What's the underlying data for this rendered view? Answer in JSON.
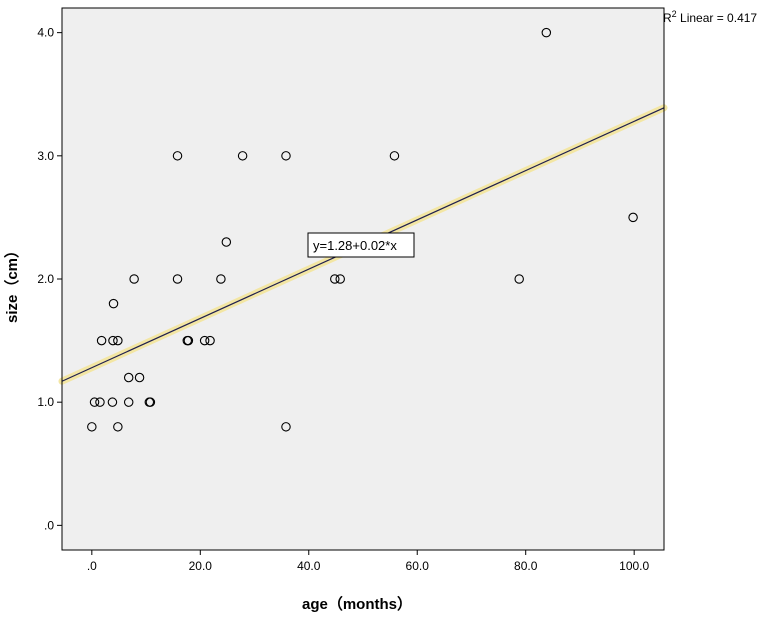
{
  "chart_data": {
    "type": "scatter",
    "xlabel": "age（months）",
    "ylabel": "size（cm）",
    "xlim": [
      -5.5,
      105.5
    ],
    "ylim": [
      -0.2,
      4.2
    ],
    "x_ticks": [
      0,
      20,
      40,
      60,
      80,
      100
    ],
    "x_tick_labels": [
      ".0",
      "20.0",
      "40.0",
      "60.0",
      "80.0",
      "100.0"
    ],
    "y_ticks": [
      0,
      1,
      2,
      3,
      4
    ],
    "y_tick_labels": [
      ".0",
      "1.0",
      "2.0",
      "3.0",
      "4.0"
    ],
    "grid": false,
    "background": "#efefef",
    "points": [
      {
        "x": 0,
        "y": 0.8
      },
      {
        "x": 0.5,
        "y": 1.0
      },
      {
        "x": 1.5,
        "y": 1.0
      },
      {
        "x": 1.8,
        "y": 1.5
      },
      {
        "x": 3.8,
        "y": 1.0
      },
      {
        "x": 3.9,
        "y": 1.5
      },
      {
        "x": 4.0,
        "y": 1.8
      },
      {
        "x": 4.8,
        "y": 1.5
      },
      {
        "x": 4.8,
        "y": 0.8
      },
      {
        "x": 6.8,
        "y": 1.0
      },
      {
        "x": 6.8,
        "y": 1.2
      },
      {
        "x": 7.8,
        "y": 2.0
      },
      {
        "x": 8.8,
        "y": 1.2
      },
      {
        "x": 10.6,
        "y": 1.0
      },
      {
        "x": 10.8,
        "y": 1.0
      },
      {
        "x": 15.8,
        "y": 3.0
      },
      {
        "x": 15.8,
        "y": 2.0
      },
      {
        "x": 17.6,
        "y": 1.5
      },
      {
        "x": 17.8,
        "y": 1.5
      },
      {
        "x": 20.8,
        "y": 1.5
      },
      {
        "x": 21.8,
        "y": 1.5
      },
      {
        "x": 23.8,
        "y": 2.0
      },
      {
        "x": 24.8,
        "y": 2.3
      },
      {
        "x": 27.8,
        "y": 3.0
      },
      {
        "x": 35.8,
        "y": 3.0
      },
      {
        "x": 35.8,
        "y": 0.8
      },
      {
        "x": 44.8,
        "y": 2.0
      },
      {
        "x": 45.8,
        "y": 2.0
      },
      {
        "x": 55.8,
        "y": 3.0
      },
      {
        "x": 78.8,
        "y": 2.0
      },
      {
        "x": 83.8,
        "y": 4.0
      },
      {
        "x": 99.8,
        "y": 2.5
      }
    ],
    "fit_line": {
      "intercept": 1.28,
      "slope": 0.02,
      "x_start": -5.5,
      "x_end": 105.5
    },
    "equation_label": "y=1.28+0.02*x",
    "r2_label": {
      "prefix": "R",
      "sup": "2",
      "text": " Linear = 0.417"
    },
    "colors": {
      "point_stroke": "#000000",
      "fit_line": "#1f1f4f",
      "fit_halo": "#f3e6a3",
      "frame": "#000000"
    }
  }
}
